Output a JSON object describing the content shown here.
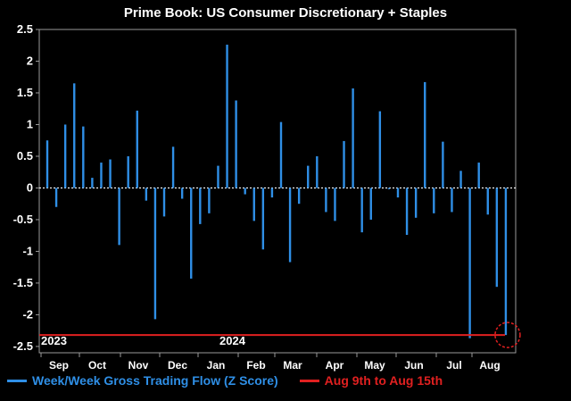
{
  "chart_data": {
    "type": "bar",
    "title": "Prime Book: US Consumer Discretionary + Staples",
    "ylim": [
      -2.6,
      2.5
    ],
    "yticks": [
      2.5,
      2,
      1.5,
      1,
      0.5,
      0,
      -0.5,
      -1,
      -1.5,
      -2,
      -2.5
    ],
    "ytick_labels": [
      "2.5",
      "2",
      "1.5",
      "1",
      "0.5",
      "0",
      "-0.5",
      "-1",
      "-1.5",
      "-2",
      "-2.5"
    ],
    "month_labels": [
      "Sep",
      "Oct",
      "Nov",
      "Dec",
      "Jan",
      "Feb",
      "Mar",
      "Apr",
      "May",
      "Jun",
      "Jul",
      "Aug"
    ],
    "year_labels": [
      "2023",
      "2024"
    ],
    "bar_color": "#2f8fe6",
    "reference_color": "#e02020",
    "reference_value": -2.32,
    "series": [
      {
        "name": "Week/Week Gross Trading Flow (Z Score)",
        "values": [
          0.75,
          -0.3,
          1.0,
          1.65,
          0.97,
          0.16,
          0.4,
          0.45,
          -0.9,
          0.5,
          1.22,
          -0.2,
          -2.07,
          -0.45,
          0.65,
          -0.17,
          -1.43,
          -0.57,
          -0.4,
          0.35,
          2.26,
          1.38,
          -0.1,
          -0.52,
          -0.97,
          -0.15,
          1.04,
          -1.17,
          -0.25,
          0.35,
          0.5,
          -0.38,
          -0.52,
          0.74,
          1.57,
          -0.7,
          -0.5,
          1.21,
          -0.02,
          -0.15,
          -0.74,
          -0.47,
          1.67,
          -0.4,
          0.73,
          -0.38,
          0.27,
          -2.37,
          0.4,
          -0.42,
          -1.56,
          -2.32
        ]
      }
    ],
    "legend": [
      {
        "label": "Week/Week Gross Trading Flow (Z Score)",
        "color": "#2f8fe6"
      },
      {
        "label": "Aug 9th to Aug 15th",
        "color": "#e02020"
      }
    ]
  }
}
